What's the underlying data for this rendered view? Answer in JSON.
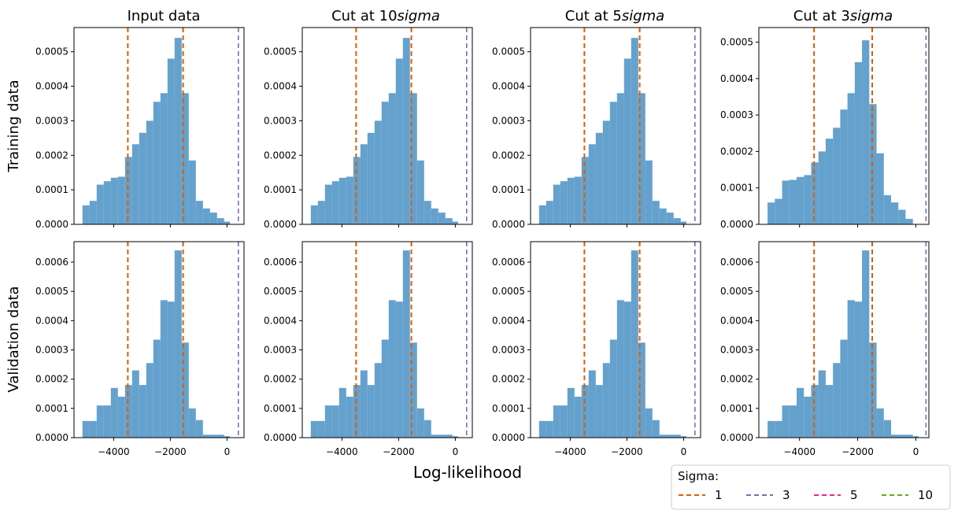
{
  "figure": {
    "xlabel": "Log-likelihood",
    "row_labels": [
      "Training data",
      "Validation data"
    ],
    "column_titles": [
      {
        "plain": "Input data",
        "italic": ""
      },
      {
        "plain": "Cut at 10",
        "italic": "sigma"
      },
      {
        "plain": "Cut at 5",
        "italic": "sigma"
      },
      {
        "plain": "Cut at 3",
        "italic": "sigma"
      }
    ],
    "legend": {
      "title": "Sigma:",
      "items": [
        {
          "label": "1",
          "color": "#d95f02"
        },
        {
          "label": "3",
          "color": "#7570b3"
        },
        {
          "label": "5",
          "color": "#e7298a"
        },
        {
          "label": "10",
          "color": "#66a61e"
        }
      ]
    },
    "colors": {
      "bars": "#4a90c4"
    }
  },
  "chart_data": [
    {
      "type": "bar",
      "row": "Training data",
      "title": "Input data",
      "xlim": [
        -5400,
        600
      ],
      "ylim": [
        0,
        0.00057
      ],
      "xticks": [
        -4000,
        -2000,
        0
      ],
      "yticks": [
        0,
        0.0001,
        0.0002,
        0.0003,
        0.0004,
        0.0005
      ],
      "bin_edges": [
        -5100,
        -4850,
        -4600,
        -4350,
        -4100,
        -3850,
        -3600,
        -3350,
        -3100,
        -2850,
        -2600,
        -2350,
        -2100,
        -1850,
        -1600,
        -1350,
        -1100,
        -850,
        -600,
        -350,
        -100,
        100
      ],
      "values": [
        5.5e-05,
        6.8e-05,
        0.000115,
        0.000125,
        0.000135,
        0.000138,
        0.000195,
        0.000232,
        0.000265,
        0.0003,
        0.000355,
        0.00038,
        0.00048,
        0.00054,
        0.00038,
        0.000185,
        6.8e-05,
        4.6e-05,
        3.4e-05,
        1.8e-05,
        8e-06
      ],
      "vlines": [
        {
          "x": -3500,
          "sigma": "1"
        },
        {
          "x": -1550,
          "sigma": "1"
        },
        {
          "x": 400,
          "sigma": "3"
        }
      ]
    },
    {
      "type": "bar",
      "row": "Training data",
      "title": "Cut at 10sigma",
      "xlim": [
        -5400,
        600
      ],
      "ylim": [
        0,
        0.00057
      ],
      "xticks": [
        -4000,
        -2000,
        0
      ],
      "yticks": [
        0,
        0.0001,
        0.0002,
        0.0003,
        0.0004,
        0.0005
      ],
      "bin_edges": [
        -5100,
        -4850,
        -4600,
        -4350,
        -4100,
        -3850,
        -3600,
        -3350,
        -3100,
        -2850,
        -2600,
        -2350,
        -2100,
        -1850,
        -1600,
        -1350,
        -1100,
        -850,
        -600,
        -350,
        -100,
        100
      ],
      "values": [
        5.5e-05,
        6.8e-05,
        0.000115,
        0.000125,
        0.000135,
        0.000138,
        0.000195,
        0.000232,
        0.000265,
        0.0003,
        0.000355,
        0.00038,
        0.00048,
        0.00054,
        0.00038,
        0.000185,
        6.8e-05,
        4.6e-05,
        3.4e-05,
        1.8e-05,
        8e-06
      ],
      "vlines": [
        {
          "x": -3500,
          "sigma": "1"
        },
        {
          "x": -1550,
          "sigma": "1"
        },
        {
          "x": 400,
          "sigma": "3"
        }
      ]
    },
    {
      "type": "bar",
      "row": "Training data",
      "title": "Cut at 5sigma",
      "xlim": [
        -5400,
        600
      ],
      "ylim": [
        0,
        0.00057
      ],
      "xticks": [
        -4000,
        -2000,
        0
      ],
      "yticks": [
        0,
        0.0001,
        0.0002,
        0.0003,
        0.0004,
        0.0005
      ],
      "bin_edges": [
        -5100,
        -4850,
        -4600,
        -4350,
        -4100,
        -3850,
        -3600,
        -3350,
        -3100,
        -2850,
        -2600,
        -2350,
        -2100,
        -1850,
        -1600,
        -1350,
        -1100,
        -850,
        -600,
        -350,
        -100,
        100
      ],
      "values": [
        5.5e-05,
        6.8e-05,
        0.000115,
        0.000125,
        0.000135,
        0.000138,
        0.000195,
        0.000232,
        0.000265,
        0.0003,
        0.000355,
        0.00038,
        0.00048,
        0.00054,
        0.00038,
        0.000185,
        6.8e-05,
        4.6e-05,
        3.4e-05,
        1.8e-05,
        8e-06
      ],
      "vlines": [
        {
          "x": -3500,
          "sigma": "1"
        },
        {
          "x": -1550,
          "sigma": "1"
        },
        {
          "x": 400,
          "sigma": "3"
        }
      ]
    },
    {
      "type": "bar",
      "row": "Training data",
      "title": "Cut at 3sigma",
      "xlim": [
        -5400,
        450
      ],
      "ylim": [
        0,
        0.00054
      ],
      "xticks": [
        -4000,
        -2000,
        0
      ],
      "yticks": [
        0,
        0.0001,
        0.0002,
        0.0003,
        0.0004,
        0.0005
      ],
      "bin_edges": [
        -5100,
        -4850,
        -4600,
        -4350,
        -4100,
        -3850,
        -3600,
        -3350,
        -3100,
        -2850,
        -2600,
        -2350,
        -2100,
        -1850,
        -1600,
        -1350,
        -1100,
        -850,
        -600,
        -350,
        -100
      ],
      "values": [
        6e-05,
        7e-05,
        0.00012,
        0.000122,
        0.00013,
        0.000135,
        0.00017,
        0.0002,
        0.000235,
        0.000265,
        0.000315,
        0.00036,
        0.000445,
        0.000505,
        0.00033,
        0.000195,
        8e-05,
        6e-05,
        4e-05,
        1.5e-05
      ],
      "vlines": [
        {
          "x": -3500,
          "sigma": "1"
        },
        {
          "x": -1500,
          "sigma": "1"
        },
        {
          "x": 350,
          "sigma": "3"
        }
      ]
    },
    {
      "type": "bar",
      "row": "Validation data",
      "title": "Input data",
      "xlim": [
        -5400,
        600
      ],
      "ylim": [
        0,
        0.00067
      ],
      "xticks": [
        -4000,
        -2000,
        0
      ],
      "yticks": [
        0,
        0.0001,
        0.0002,
        0.0003,
        0.0004,
        0.0005,
        0.0006
      ],
      "bin_edges": [
        -5100,
        -4850,
        -4600,
        -4350,
        -4100,
        -3850,
        -3600,
        -3350,
        -3100,
        -2850,
        -2600,
        -2350,
        -2100,
        -1850,
        -1600,
        -1350,
        -1100,
        -850,
        -600,
        -350,
        -100,
        100
      ],
      "values": [
        5.7e-05,
        5.7e-05,
        0.00011,
        0.00011,
        0.00017,
        0.00014,
        0.00018,
        0.00023,
        0.00018,
        0.000255,
        0.000335,
        0.00047,
        0.000465,
        0.00064,
        0.000325,
        0.0001,
        6e-05,
        1e-05,
        1e-05,
        1e-05,
        5e-06
      ],
      "vlines": [
        {
          "x": -3500,
          "sigma": "1"
        },
        {
          "x": -1550,
          "sigma": "1"
        },
        {
          "x": 400,
          "sigma": "3"
        }
      ]
    },
    {
      "type": "bar",
      "row": "Validation data",
      "title": "Cut at 10sigma",
      "xlim": [
        -5400,
        600
      ],
      "ylim": [
        0,
        0.00067
      ],
      "xticks": [
        -4000,
        -2000,
        0
      ],
      "yticks": [
        0,
        0.0001,
        0.0002,
        0.0003,
        0.0004,
        0.0005,
        0.0006
      ],
      "bin_edges": [
        -5100,
        -4850,
        -4600,
        -4350,
        -4100,
        -3850,
        -3600,
        -3350,
        -3100,
        -2850,
        -2600,
        -2350,
        -2100,
        -1850,
        -1600,
        -1350,
        -1100,
        -850,
        -600,
        -350,
        -100,
        100
      ],
      "values": [
        5.7e-05,
        5.7e-05,
        0.00011,
        0.00011,
        0.00017,
        0.00014,
        0.00018,
        0.00023,
        0.00018,
        0.000255,
        0.000335,
        0.00047,
        0.000465,
        0.00064,
        0.000325,
        0.0001,
        6e-05,
        1e-05,
        1e-05,
        1e-05,
        5e-06
      ],
      "vlines": [
        {
          "x": -3500,
          "sigma": "1"
        },
        {
          "x": -1550,
          "sigma": "1"
        },
        {
          "x": 400,
          "sigma": "3"
        }
      ]
    },
    {
      "type": "bar",
      "row": "Validation data",
      "title": "Cut at 5sigma",
      "xlim": [
        -5400,
        600
      ],
      "ylim": [
        0,
        0.00067
      ],
      "xticks": [
        -4000,
        -2000,
        0
      ],
      "yticks": [
        0,
        0.0001,
        0.0002,
        0.0003,
        0.0004,
        0.0005,
        0.0006
      ],
      "bin_edges": [
        -5100,
        -4850,
        -4600,
        -4350,
        -4100,
        -3850,
        -3600,
        -3350,
        -3100,
        -2850,
        -2600,
        -2350,
        -2100,
        -1850,
        -1600,
        -1350,
        -1100,
        -850,
        -600,
        -350,
        -100,
        100
      ],
      "values": [
        5.7e-05,
        5.7e-05,
        0.00011,
        0.00011,
        0.00017,
        0.00014,
        0.00018,
        0.00023,
        0.00018,
        0.000255,
        0.000335,
        0.00047,
        0.000465,
        0.00064,
        0.000325,
        0.0001,
        6e-05,
        1e-05,
        1e-05,
        1e-05,
        5e-06
      ],
      "vlines": [
        {
          "x": -3500,
          "sigma": "1"
        },
        {
          "x": -1550,
          "sigma": "1"
        },
        {
          "x": 400,
          "sigma": "3"
        }
      ]
    },
    {
      "type": "bar",
      "row": "Validation data",
      "title": "Cut at 3sigma",
      "xlim": [
        -5400,
        450
      ],
      "ylim": [
        0,
        0.00067
      ],
      "xticks": [
        -4000,
        -2000,
        0
      ],
      "yticks": [
        0,
        0.0001,
        0.0002,
        0.0003,
        0.0004,
        0.0005,
        0.0006
      ],
      "bin_edges": [
        -5100,
        -4850,
        -4600,
        -4350,
        -4100,
        -3850,
        -3600,
        -3350,
        -3100,
        -2850,
        -2600,
        -2350,
        -2100,
        -1850,
        -1600,
        -1350,
        -1100,
        -850,
        -600,
        -350,
        -100,
        100
      ],
      "values": [
        5.7e-05,
        5.7e-05,
        0.00011,
        0.00011,
        0.00017,
        0.00014,
        0.00018,
        0.00023,
        0.00018,
        0.000255,
        0.000335,
        0.00047,
        0.000465,
        0.00064,
        0.000325,
        0.0001,
        6e-05,
        1e-05,
        1e-05,
        1e-05,
        5e-06
      ],
      "vlines": [
        {
          "x": -3500,
          "sigma": "1"
        },
        {
          "x": -1500,
          "sigma": "1"
        },
        {
          "x": 350,
          "sigma": "3"
        }
      ]
    }
  ]
}
